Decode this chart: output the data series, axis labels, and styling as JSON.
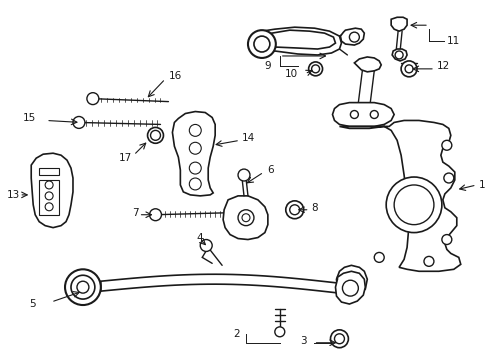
{
  "background_color": "#ffffff",
  "line_color": "#1a1a1a",
  "fig_width": 4.89,
  "fig_height": 3.6,
  "dpi": 100,
  "label_fontsize": 7.5
}
